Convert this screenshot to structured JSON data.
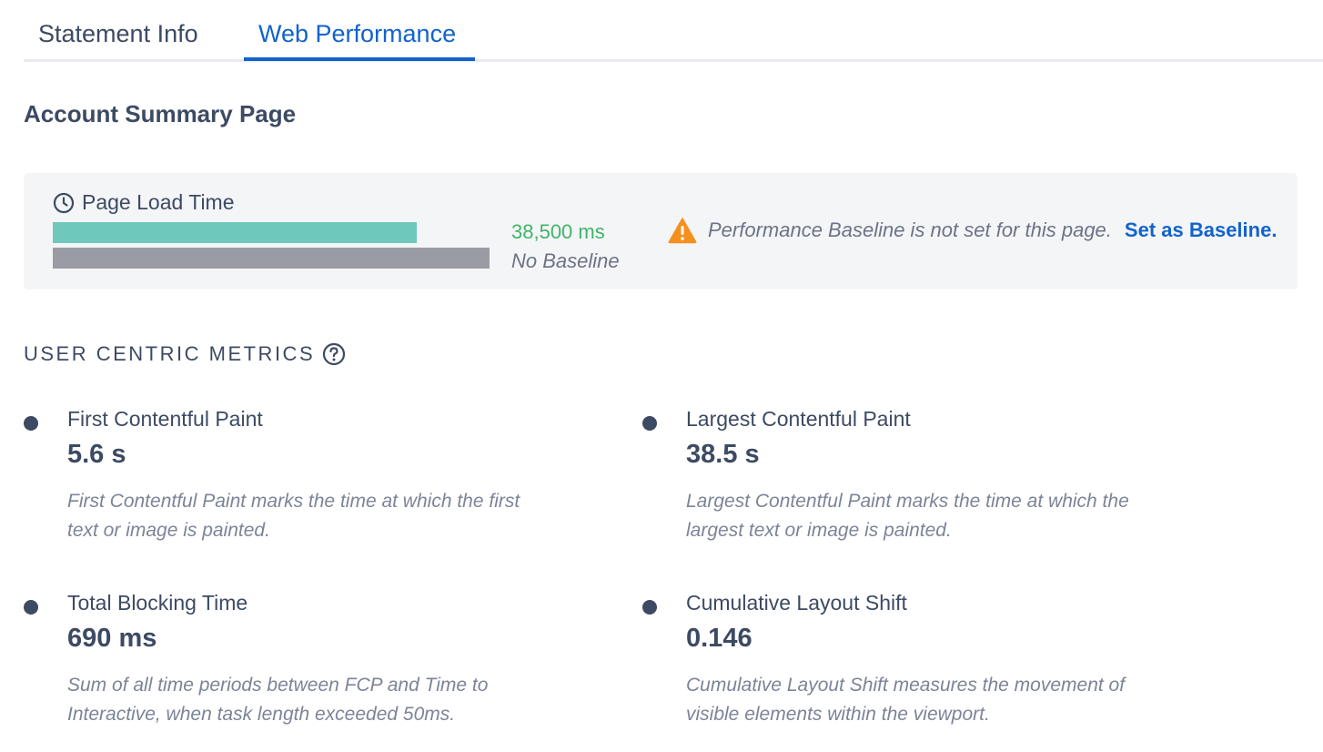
{
  "tabs": [
    {
      "label": "Statement Info",
      "active": false
    },
    {
      "label": "Web Performance",
      "active": true
    }
  ],
  "page_title": "Account Summary Page",
  "page_load": {
    "label": "Page Load Time",
    "icon": "clock-icon",
    "value": "38,500 ms",
    "baseline_label": "No Baseline",
    "warning_icon": "warning-icon",
    "warning_text": "Performance Baseline is not set for this page.",
    "link_label": "Set as Baseline.",
    "value_bar_fraction": 0.833
  },
  "metrics_section": {
    "heading": "USER CENTRIC METRICS",
    "help_icon": "help-icon",
    "items": [
      {
        "title": "First Contentful Paint",
        "value": "5.6 s",
        "description": "First Contentful Paint marks the time at which the first text or image is painted."
      },
      {
        "title": "Largest Contentful Paint",
        "value": "38.5 s",
        "description": "Largest Contentful Paint marks the time at which the largest text or image is painted."
      },
      {
        "title": "Total Blocking Time",
        "value": "690 ms",
        "description": "Sum of all time periods between FCP and Time to Interactive, when task length exceeded 50ms."
      },
      {
        "title": "Cumulative Layout Shift",
        "value": "0.146",
        "description": "Cumulative Layout Shift measures the movement of visible elements within the viewport."
      }
    ]
  },
  "colors": {
    "accent": "#1263cc",
    "good": "#3fb568",
    "bar": "#6fc8bc",
    "baseline_bar": "#999ca3",
    "warning": "#f5901f",
    "text": "#3d4a63"
  }
}
